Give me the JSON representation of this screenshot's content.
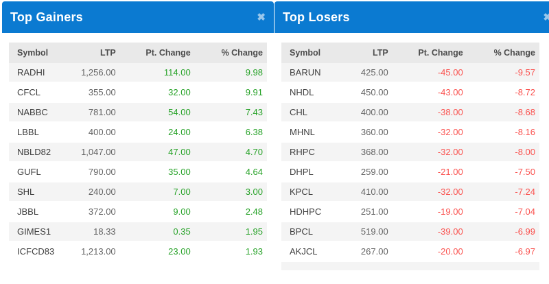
{
  "colors": {
    "header_bg": "#0b7ad1",
    "positive": "#27a228",
    "negative": "#fa514e",
    "thead_bg": "#e9e9e9",
    "row_alt_bg": "#f4f4f4"
  },
  "icons": {
    "close_glyph": "✖"
  },
  "panels": [
    {
      "title": "Top Gainers",
      "columns": [
        "Symbol",
        "LTP",
        "Pt. Change",
        "% Change"
      ],
      "change_color": "#27a228",
      "rows": [
        [
          "RADHI",
          "1,256.00",
          "114.00",
          "9.98"
        ],
        [
          "CFCL",
          "355.00",
          "32.00",
          "9.91"
        ],
        [
          "NABBC",
          "781.00",
          "54.00",
          "7.43"
        ],
        [
          "LBBL",
          "400.00",
          "24.00",
          "6.38"
        ],
        [
          "NBLD82",
          "1,047.00",
          "47.00",
          "4.70"
        ],
        [
          "GUFL",
          "790.00",
          "35.00",
          "4.64"
        ],
        [
          "SHL",
          "240.00",
          "7.00",
          "3.00"
        ],
        [
          "JBBL",
          "372.00",
          "9.00",
          "2.48"
        ],
        [
          "GIMES1",
          "18.33",
          "0.35",
          "1.95"
        ],
        [
          "ICFCD83",
          "1,213.00",
          "23.00",
          "1.93"
        ]
      ]
    },
    {
      "title": "Top Losers",
      "columns": [
        "Symbol",
        "LTP",
        "Pt. Change",
        "% Change"
      ],
      "change_color": "#fa514e",
      "rows": [
        [
          "BARUN",
          "425.00",
          "-45.00",
          "-9.57"
        ],
        [
          "NHDL",
          "450.00",
          "-43.00",
          "-8.72"
        ],
        [
          "CHL",
          "400.00",
          "-38.00",
          "-8.68"
        ],
        [
          "MHNL",
          "360.00",
          "-32.00",
          "-8.16"
        ],
        [
          "RHPC",
          "368.00",
          "-32.00",
          "-8.00"
        ],
        [
          "DHPL",
          "259.00",
          "-21.00",
          "-7.50"
        ],
        [
          "KPCL",
          "410.00",
          "-32.00",
          "-7.24"
        ],
        [
          "HDHPC",
          "251.00",
          "-19.00",
          "-7.04"
        ],
        [
          "BPCL",
          "519.00",
          "-39.00",
          "-6.99"
        ],
        [
          "AKJCL",
          "267.00",
          "-20.00",
          "-6.97"
        ]
      ]
    }
  ]
}
